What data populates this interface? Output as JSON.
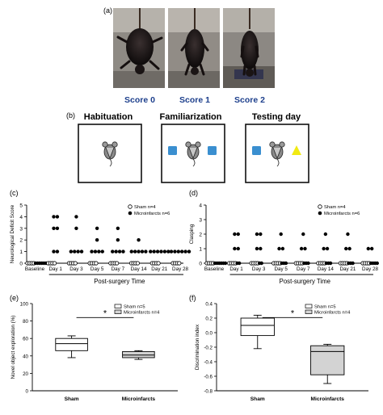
{
  "panel_a": {
    "label": "(a)",
    "photos": [
      {
        "label": "Score 0"
      },
      {
        "label": "Score 1"
      },
      {
        "label": "Score 2"
      }
    ]
  },
  "panel_b": {
    "label": "(b)",
    "stages": [
      {
        "title": "Habituation",
        "objects": []
      },
      {
        "title": "Familiarization",
        "objects": [
          "blue-square",
          "blue-square"
        ]
      },
      {
        "title": "Testing day",
        "objects": [
          "blue-square",
          "yellow-triangle"
        ]
      }
    ],
    "colors": {
      "blue": "#3a8fd0",
      "yellow": "#f1ea13"
    }
  },
  "chart_data": [
    {
      "panel": "(c)",
      "type": "scatter",
      "ylabel": "Neurological Deficit Score",
      "xlabel": "Post-surgery Time",
      "categories": [
        "Baseline",
        "Day 1",
        "Day 3",
        "Day 5",
        "Day 7",
        "Day 14",
        "Day 21",
        "Day 28"
      ],
      "ylim": [
        0,
        5
      ],
      "yticks": [
        0,
        1,
        2,
        3,
        4,
        5
      ],
      "legend": [
        "Sham n=4",
        "Microinfarcts n=6"
      ],
      "legend_placement": "top-right",
      "series": [
        {
          "name": "Sham n=4",
          "marker": "open-circle",
          "values": [
            [
              0,
              0,
              0,
              0
            ],
            [
              0,
              0,
              0,
              0
            ],
            [
              0,
              0,
              0,
              0
            ],
            [
              0,
              0,
              0,
              0
            ],
            [
              0,
              0,
              0,
              0
            ],
            [
              0,
              0,
              0,
              0
            ],
            [
              0,
              0,
              0,
              0
            ],
            [
              0,
              0,
              0,
              0
            ]
          ]
        },
        {
          "name": "Microinfarcts n=6",
          "marker": "filled-circle",
          "values": [
            [
              0,
              0,
              0,
              0,
              0,
              0
            ],
            [
              4,
              4,
              3,
              3,
              1,
              1
            ],
            [
              4,
              3,
              1,
              1,
              1,
              1
            ],
            [
              3,
              2,
              1,
              1,
              1,
              1
            ],
            [
              3,
              2,
              1,
              1,
              1,
              1
            ],
            [
              2,
              1,
              1,
              1,
              1,
              1
            ],
            [
              1,
              1,
              1,
              1,
              1,
              1
            ],
            [
              1,
              1,
              1,
              1,
              1,
              1
            ]
          ]
        }
      ]
    },
    {
      "panel": "(d)",
      "type": "scatter",
      "ylabel": "Clasping",
      "xlabel": "Post-surgery Time",
      "categories": [
        "Baseline",
        "Day 1",
        "Day 3",
        "Day 5",
        "Day 7",
        "Day 14",
        "Day 21",
        "Day 28"
      ],
      "ylim": [
        0,
        4
      ],
      "yticks": [
        0,
        1,
        2,
        3,
        4
      ],
      "legend": [
        "Sham n=4",
        "Microinfarcts n=6"
      ],
      "legend_placement": "top-right",
      "series": [
        {
          "name": "Sham n=4",
          "marker": "open-circle",
          "values": [
            [
              0,
              0,
              0,
              0
            ],
            [
              0,
              0,
              0,
              0
            ],
            [
              0,
              0,
              0,
              0
            ],
            [
              0,
              0,
              0,
              0
            ],
            [
              0,
              0,
              0,
              0
            ],
            [
              0,
              0,
              0,
              0
            ],
            [
              0,
              0,
              0,
              0
            ],
            [
              0,
              0,
              0,
              0
            ]
          ]
        },
        {
          "name": "Microinfarcts n=6",
          "marker": "filled-circle",
          "values": [
            [
              0,
              0,
              0,
              0,
              0,
              0
            ],
            [
              2,
              2,
              1,
              1,
              0,
              0
            ],
            [
              2,
              2,
              1,
              1,
              0,
              0
            ],
            [
              2,
              1,
              1,
              0,
              0,
              0
            ],
            [
              2,
              1,
              1,
              0,
              0,
              0
            ],
            [
              2,
              1,
              1,
              0,
              0,
              0
            ],
            [
              2,
              1,
              1,
              0,
              0,
              0
            ],
            [
              1,
              1,
              0,
              0,
              0,
              0
            ]
          ]
        }
      ]
    },
    {
      "panel": "(e)",
      "type": "box",
      "ylabel": "Novel object exploration (%)",
      "categories": [
        "Sham",
        "Microinfarcts"
      ],
      "ylim": [
        0,
        100
      ],
      "yticks": [
        0,
        20,
        40,
        60,
        80,
        100
      ],
      "legend": [
        "Sham n=5",
        "Microinfarcts n=4"
      ],
      "legend_placement": "top-right",
      "significance": "*",
      "boxes": [
        {
          "name": "Sham",
          "min": 38,
          "q1": 46,
          "median": 54,
          "q3": 60,
          "max": 63,
          "fill": "#ffffff"
        },
        {
          "name": "Microinfarcts",
          "min": 36,
          "q1": 38,
          "median": 41,
          "q3": 45,
          "max": 46,
          "fill": "#d3d3d3"
        }
      ]
    },
    {
      "panel": "(f)",
      "type": "box",
      "ylabel": "Discrimination index",
      "categories": [
        "Sham",
        "Microinfarcts"
      ],
      "ylim": [
        -0.8,
        0.4
      ],
      "yticks": [
        0.4,
        0.2,
        0.0,
        -0.2,
        -0.4,
        -0.6,
        -0.8
      ],
      "ytick_labels": [
        "0.4",
        "0.2",
        "0.0",
        "-0.2",
        "-0.4",
        "-0.6",
        "-0.8"
      ],
      "legend": [
        "Sham n=5",
        "Microinfarcts n=4"
      ],
      "legend_placement": "top-right",
      "significance": "*",
      "boxes": [
        {
          "name": "Sham",
          "min": -0.22,
          "q1": -0.04,
          "median": 0.1,
          "q3": 0.2,
          "max": 0.24,
          "fill": "#ffffff"
        },
        {
          "name": "Microinfarcts",
          "min": -0.7,
          "q1": -0.58,
          "median": -0.26,
          "q3": -0.18,
          "max": -0.16,
          "fill": "#d3d3d3"
        }
      ]
    }
  ]
}
